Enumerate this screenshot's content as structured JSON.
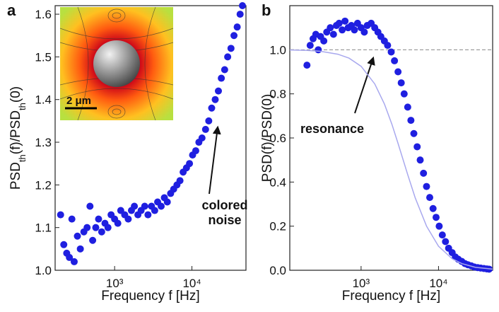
{
  "chart_data": [
    {
      "type": "scatter",
      "panel": "a",
      "xlabel": "Frequency f [Hz]",
      "ylabel": [
        {
          "text": "PSD"
        },
        {
          "sub": "th"
        },
        {
          "text": "(f)/PSD"
        },
        {
          "sub": "th"
        },
        {
          "text": "(0)"
        }
      ],
      "xscale": "log",
      "xlim": [
        170,
        50000
      ],
      "ylim": [
        1.0,
        1.62
      ],
      "xticks": [
        {
          "value": 1000,
          "label": "10³"
        },
        {
          "value": 10000,
          "label": "10⁴"
        }
      ],
      "yticks": [
        {
          "value": 1,
          "label": "1.0"
        },
        1.1,
        1.2,
        1.3,
        1.4,
        1.5,
        1.6
      ],
      "annotation": [
        "colored",
        "noise"
      ],
      "inset_scale": "2 μm",
      "series": [
        {
          "color": "#1f1fe0",
          "x": [
            200,
            220,
            240,
            260,
            280,
            300,
            330,
            360,
            400,
            440,
            480,
            520,
            570,
            620,
            680,
            750,
            820,
            900,
            1000,
            1100,
            1200,
            1350,
            1500,
            1650,
            1800,
            2000,
            2200,
            2450,
            2700,
            3000,
            3300,
            3600,
            4000,
            4400,
            4800,
            5300,
            5800,
            6400,
            7000,
            7700,
            8500,
            9300,
            10200,
            11200,
            12300,
            13500,
            15000,
            16500,
            18000,
            20000,
            22000,
            24000,
            26500,
            29000,
            32000,
            35000,
            38500,
            42000,
            45000
          ],
          "values": [
            1.13,
            1.06,
            1.04,
            1.03,
            1.12,
            1.02,
            1.08,
            1.05,
            1.09,
            1.1,
            1.15,
            1.07,
            1.1,
            1.12,
            1.09,
            1.11,
            1.1,
            1.13,
            1.12,
            1.11,
            1.14,
            1.13,
            1.12,
            1.14,
            1.15,
            1.13,
            1.14,
            1.15,
            1.13,
            1.15,
            1.14,
            1.16,
            1.15,
            1.17,
            1.16,
            1.18,
            1.19,
            1.2,
            1.21,
            1.23,
            1.24,
            1.25,
            1.27,
            1.28,
            1.3,
            1.31,
            1.33,
            1.35,
            1.38,
            1.4,
            1.42,
            1.45,
            1.47,
            1.5,
            1.52,
            1.55,
            1.57,
            1.6,
            1.62
          ]
        }
      ]
    },
    {
      "type": "scatter",
      "panel": "b",
      "xlabel": "Frequency f [Hz]",
      "ylabel": [
        {
          "text": "PSD(f)/PSD(0)"
        }
      ],
      "xscale": "log",
      "xlim": [
        120,
        50000
      ],
      "ylim": [
        0,
        1.2
      ],
      "xticks": [
        {
          "value": 1000,
          "label": "10³"
        },
        {
          "value": 10000,
          "label": "10⁴"
        }
      ],
      "yticks": [
        {
          "value": 0,
          "label": "0.0"
        },
        0.2,
        0.4,
        0.6,
        0.8,
        {
          "value": 1,
          "label": "1.0"
        }
      ],
      "reference_line": 1,
      "annotation": [
        "resonance"
      ],
      "series": [
        {
          "color": "#1f1fe0",
          "x": [
            200,
            220,
            240,
            260,
            280,
            300,
            330,
            360,
            400,
            440,
            480,
            520,
            570,
            620,
            680,
            750,
            820,
            900,
            1000,
            1100,
            1200,
            1350,
            1500,
            1650,
            1800,
            2000,
            2200,
            2450,
            2700,
            3000,
            3300,
            3600,
            4000,
            4400,
            4800,
            5300,
            5800,
            6400,
            7000,
            7700,
            8500,
            9300,
            10200,
            11200,
            12300,
            13500,
            15000,
            16500,
            18000,
            20000,
            22000,
            24000,
            26500,
            29000,
            32000,
            35000,
            38500,
            42000,
            45000
          ],
          "values": [
            0.93,
            1.02,
            1.05,
            1.07,
            1.0,
            1.06,
            1.04,
            1.08,
            1.1,
            1.07,
            1.11,
            1.12,
            1.09,
            1.13,
            1.1,
            1.11,
            1.09,
            1.12,
            1.1,
            1.08,
            1.11,
            1.12,
            1.1,
            1.08,
            1.06,
            1.04,
            1.02,
            0.99,
            0.95,
            0.9,
            0.85,
            0.8,
            0.74,
            0.68,
            0.62,
            0.56,
            0.5,
            0.44,
            0.38,
            0.33,
            0.28,
            0.24,
            0.2,
            0.16,
            0.13,
            0.1,
            0.08,
            0.06,
            0.05,
            0.04,
            0.03,
            0.025,
            0.02,
            0.015,
            0.012,
            0.01,
            0.008,
            0.006,
            0.005
          ]
        },
        {
          "color": "#a8a8ee",
          "style": "line",
          "x": [
            120,
            200,
            300,
            500,
            700,
            1000,
            1500,
            2000,
            2500,
            3000,
            4000,
            5000,
            7000,
            10000,
            15000,
            20000,
            30000,
            50000
          ],
          "values": [
            0.999,
            0.997,
            0.993,
            0.98,
            0.962,
            0.925,
            0.845,
            0.754,
            0.662,
            0.576,
            0.434,
            0.329,
            0.2,
            0.109,
            0.052,
            0.03,
            0.013,
            0.005
          ]
        }
      ]
    }
  ]
}
